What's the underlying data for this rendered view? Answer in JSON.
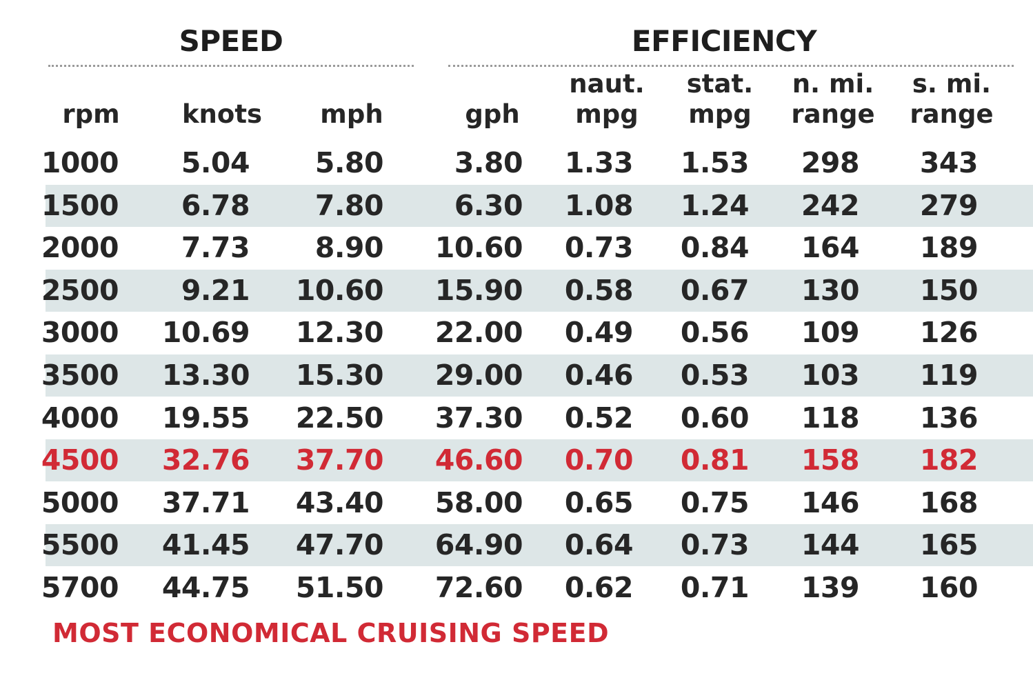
{
  "chart_data": {
    "type": "table",
    "groups": [
      {
        "label": "SPEED",
        "columns": [
          "rpm",
          "knots",
          "mph"
        ]
      },
      {
        "label": "EFFICIENCY",
        "columns": [
          "gph",
          "naut. mpg",
          "stat. mpg",
          "n. mi. range",
          "s. mi. range"
        ]
      }
    ],
    "headers": [
      {
        "line1": "",
        "line2": "rpm"
      },
      {
        "line1": "",
        "line2": "knots"
      },
      {
        "line1": "",
        "line2": "mph"
      },
      {
        "line1": "",
        "line2": "gph"
      },
      {
        "line1": "naut.",
        "line2": "mpg"
      },
      {
        "line1": "stat.",
        "line2": "mpg"
      },
      {
        "line1": "n. mi.",
        "line2": "range"
      },
      {
        "line1": "s. mi.",
        "line2": "range"
      }
    ],
    "rows": [
      [
        "1000",
        "5.04",
        "5.80",
        "3.80",
        "1.33",
        "1.53",
        "298",
        "343"
      ],
      [
        "1500",
        "6.78",
        "7.80",
        "6.30",
        "1.08",
        "1.24",
        "242",
        "279"
      ],
      [
        "2000",
        "7.73",
        "8.90",
        "10.60",
        "0.73",
        "0.84",
        "164",
        "189"
      ],
      [
        "2500",
        "9.21",
        "10.60",
        "15.90",
        "0.58",
        "0.67",
        "130",
        "150"
      ],
      [
        "3000",
        "10.69",
        "12.30",
        "22.00",
        "0.49",
        "0.56",
        "109",
        "126"
      ],
      [
        "3500",
        "13.30",
        "15.30",
        "29.00",
        "0.46",
        "0.53",
        "103",
        "119"
      ],
      [
        "4000",
        "19.55",
        "22.50",
        "37.30",
        "0.52",
        "0.60",
        "118",
        "136"
      ],
      [
        "4500",
        "32.76",
        "37.70",
        "46.60",
        "0.70",
        "0.81",
        "158",
        "182"
      ],
      [
        "5000",
        "37.71",
        "43.40",
        "58.00",
        "0.65",
        "0.75",
        "146",
        "168"
      ],
      [
        "5500",
        "41.45",
        "47.70",
        "64.90",
        "0.64",
        "0.73",
        "144",
        "165"
      ],
      [
        "5700",
        "44.75",
        "51.50",
        "72.60",
        "0.62",
        "0.71",
        "139",
        "160"
      ]
    ],
    "highlight_row_rpm": "4500",
    "highlight_color": "#d12a35",
    "stripe_color": "#dde6e7",
    "footnote": "MOST ECONOMICAL CRUISING SPEED"
  }
}
